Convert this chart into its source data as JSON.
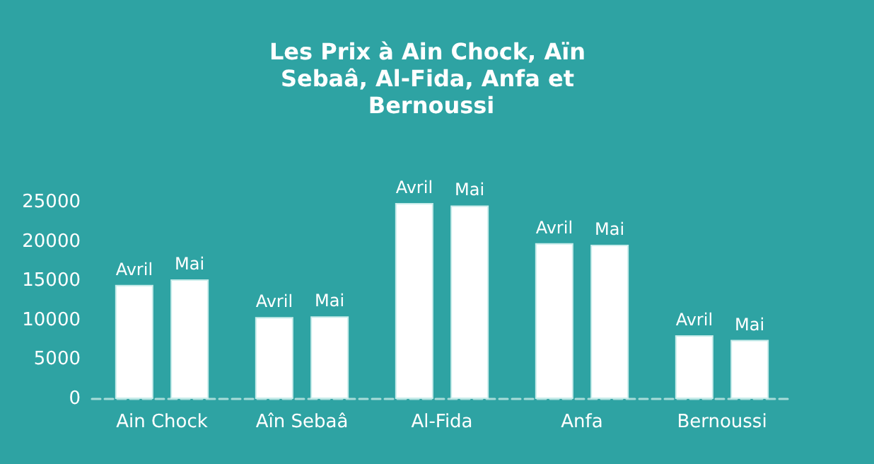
{
  "chart_data": {
    "type": "bar",
    "title": "Les Prix à Ain Chock, Aïn Sebaâ, Al-Fida, Anfa et Bernoussi",
    "categories": [
      "Ain Chock",
      "Aîn Sebaâ",
      "Al-Fida",
      "Anfa",
      "Bernoussi"
    ],
    "series": [
      {
        "name": "Avril",
        "color": "#ffffff",
        "values": [
          14500,
          10400,
          24900,
          19800,
          8100
        ]
      },
      {
        "name": "Mai",
        "color": "#ffffff",
        "values": [
          15200,
          10500,
          24600,
          19600,
          7500
        ]
      }
    ],
    "ylim": [
      0,
      25000
    ],
    "yticks": [
      0,
      5000,
      10000,
      15000,
      20000,
      25000
    ],
    "grid": false,
    "legend": false
  }
}
